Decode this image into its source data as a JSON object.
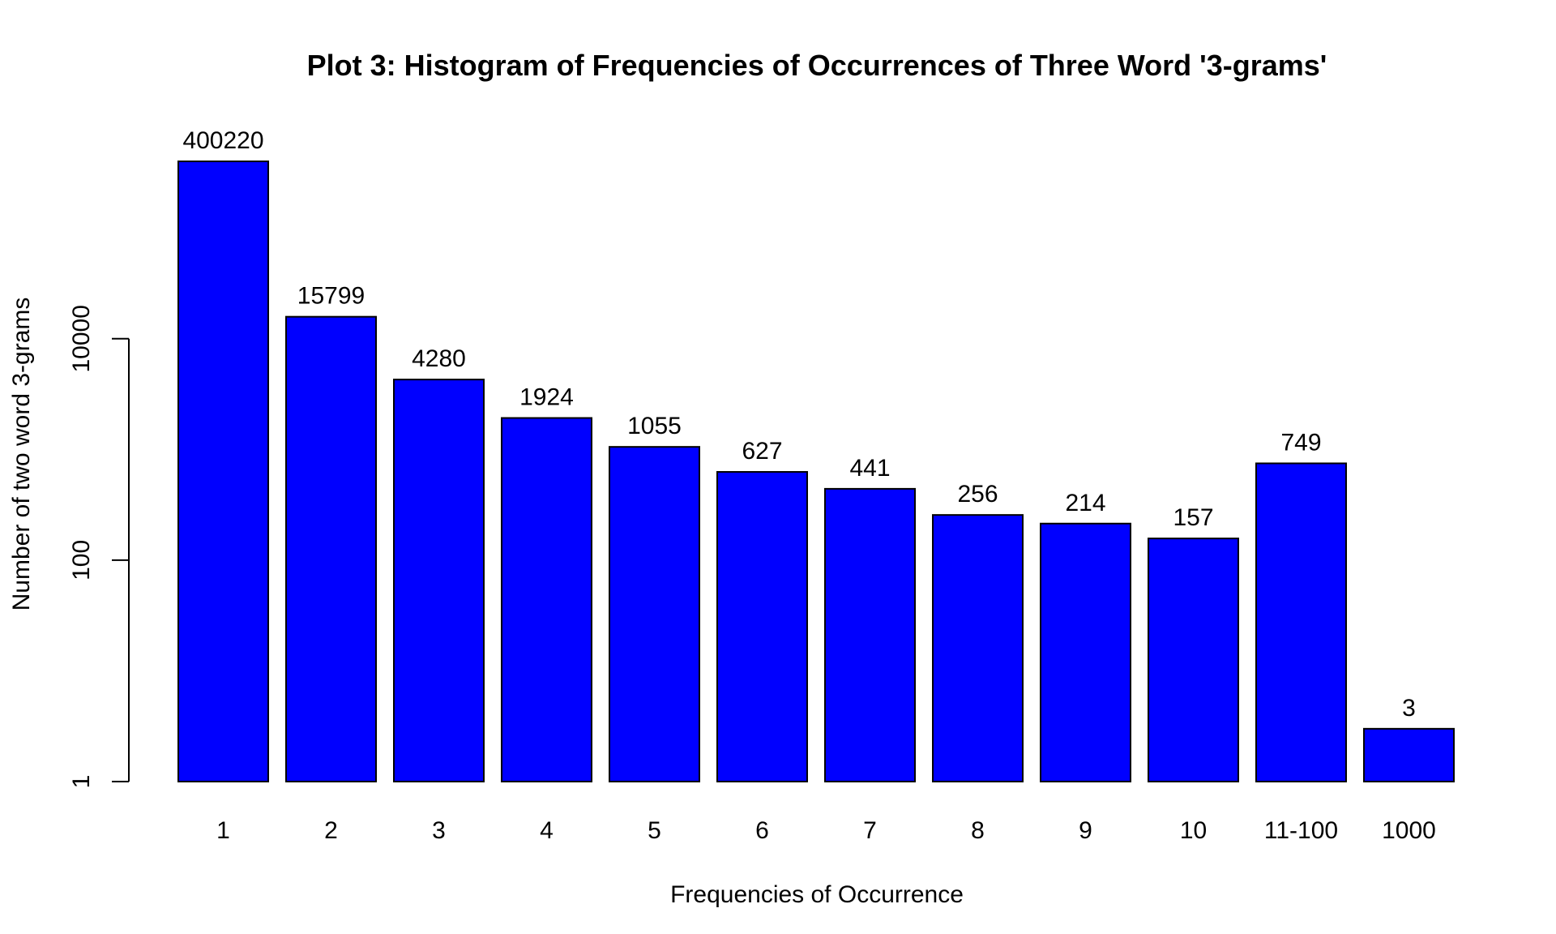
{
  "chart_data": {
    "type": "bar",
    "title": "Plot 3: Histogram of Frequencies of Occurrences of Three Word '3-grams'",
    "xlabel": "Frequencies of Occurrence",
    "ylabel": "Number of two word 3-grams",
    "y_scale": "log",
    "ylim": [
      1,
      400220
    ],
    "y_ticks": [
      1,
      100,
      10000
    ],
    "y_tick_labels": [
      "1",
      "100",
      "10000"
    ],
    "categories": [
      "1",
      "2",
      "3",
      "4",
      "5",
      "6",
      "7",
      "8",
      "9",
      "10",
      "11-100",
      "1000"
    ],
    "values": [
      400220,
      15799,
      4280,
      1924,
      1055,
      627,
      441,
      256,
      214,
      157,
      749,
      3
    ],
    "data_labels": [
      "400220",
      "15799",
      "4280",
      "1924",
      "1055",
      "627",
      "441",
      "256",
      "214",
      "157",
      "749",
      "3"
    ],
    "bar_color": "#0000ff",
    "bar_border_color": "#000000",
    "grid": false,
    "legend": "none"
  }
}
